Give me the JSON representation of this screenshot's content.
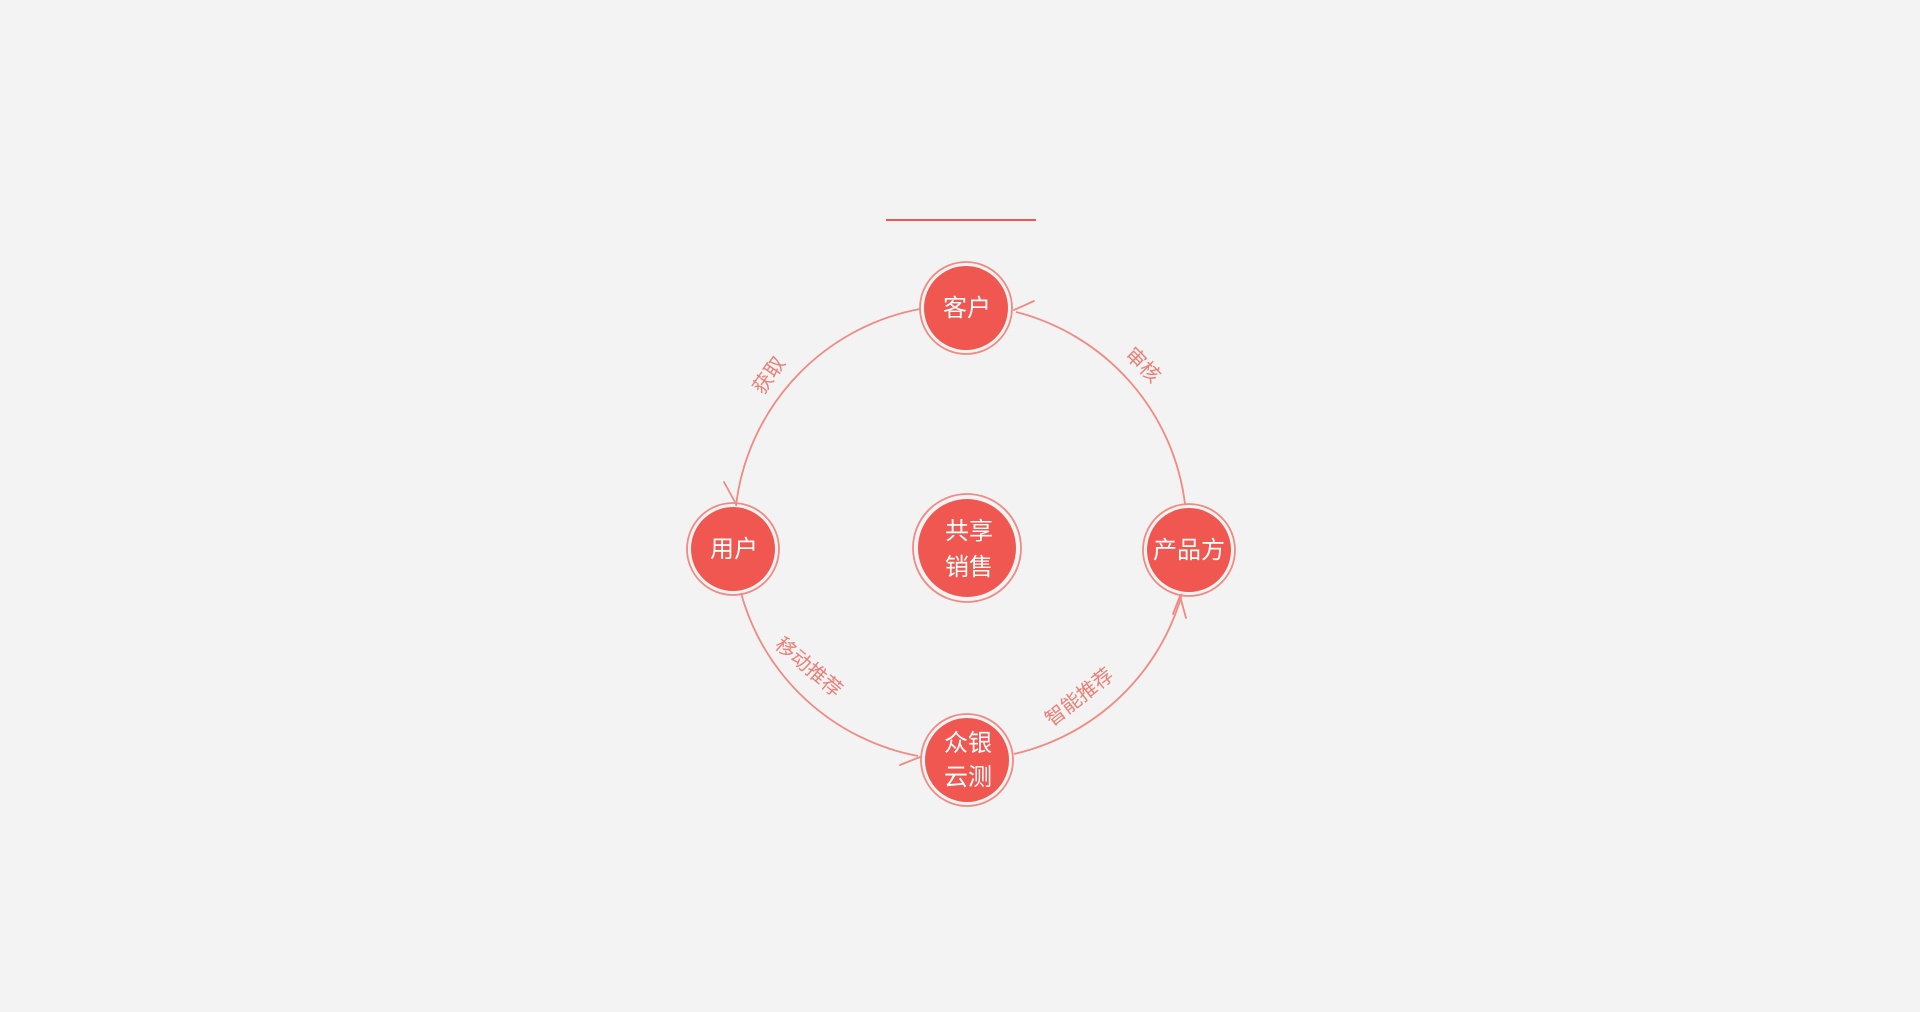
{
  "colors": {
    "accent": "#ef5750",
    "ring": "#f08a82",
    "edge_label": "#ea7f76",
    "background": "#f3f3f3"
  },
  "diagram": {
    "center": {
      "line1": "共享",
      "line2": "销售"
    },
    "nodes": {
      "top": {
        "line1": "客户"
      },
      "right": {
        "line1": "产品方"
      },
      "bottom": {
        "line1": "众银",
        "line2": "云测"
      },
      "left": {
        "line1": "用户"
      }
    },
    "edges": {
      "top_right": "审核",
      "right_bottom": "智能推荐",
      "bottom_left": "移动推荐",
      "left_top": "获取"
    }
  }
}
